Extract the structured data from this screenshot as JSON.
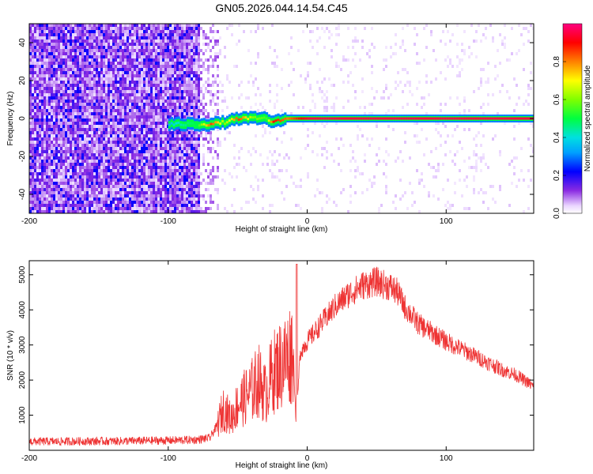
{
  "figure_title": "GN05.2026.044.14.54.C45",
  "chart_data": [
    {
      "type": "heatmap",
      "xlabel": "Height of straight line (km)",
      "ylabel": "Frequency (Hz)",
      "xlim": [
        -200,
        163
      ],
      "ylim": [
        -50,
        50
      ],
      "xticks": [
        -200,
        -100,
        0,
        100
      ],
      "yticks": [
        -40,
        -20,
        0,
        20,
        40
      ],
      "colorbar": {
        "label": "Normalized spectral amplitude",
        "range": [
          0,
          1
        ],
        "ticks": [
          "0.0",
          "0.2",
          "0.4",
          "0.6",
          "0.8"
        ]
      },
      "noise_region_x": [
        -200,
        -70
      ],
      "signal_track": [
        {
          "x": -100,
          "f": -3,
          "amp": 0.35
        },
        {
          "x": -90,
          "f": -3,
          "amp": 0.45
        },
        {
          "x": -80,
          "f": -3,
          "amp": 0.5
        },
        {
          "x": -70,
          "f": -3,
          "amp": 0.85
        },
        {
          "x": -60,
          "f": -2,
          "amp": 0.6
        },
        {
          "x": -50,
          "f": 0,
          "amp": 0.85
        },
        {
          "x": -40,
          "f": 0,
          "amp": 0.6
        },
        {
          "x": -30,
          "f": 0,
          "amp": 0.55
        },
        {
          "x": -25,
          "f": -2,
          "amp": 0.9
        },
        {
          "x": -15,
          "f": 0,
          "amp": 0.8
        },
        {
          "x": 0,
          "f": 0,
          "amp": 0.95
        },
        {
          "x": 50,
          "f": 0,
          "amp": 0.95
        },
        {
          "x": 100,
          "f": 0,
          "amp": 0.95
        },
        {
          "x": 163,
          "f": 0,
          "amp": 0.95
        }
      ]
    },
    {
      "type": "line",
      "xlabel": "Height of straight line (km)",
      "ylabel": "SNR (10 * v/v)",
      "xlim": [
        -200,
        163
      ],
      "ylim": [
        0,
        5400
      ],
      "xticks": [
        -200,
        -100,
        0,
        100
      ],
      "yticks": [
        1000,
        2000,
        3000,
        4000,
        5000
      ],
      "series": [
        {
          "color": "#ee3333",
          "x": [
            -200,
            -180,
            -160,
            -140,
            -120,
            -100,
            -80,
            -70,
            -65,
            -60,
            -55,
            -50,
            -45,
            -40,
            -35,
            -30,
            -25,
            -20,
            -15,
            -10,
            -8,
            -5,
            0,
            10,
            20,
            30,
            40,
            50,
            60,
            65,
            70,
            80,
            90,
            100,
            110,
            120,
            130,
            140,
            150,
            160,
            163
          ],
          "y": [
            250,
            250,
            260,
            260,
            270,
            280,
            300,
            350,
            700,
            1200,
            900,
            1300,
            1500,
            1700,
            2000,
            1600,
            2200,
            2400,
            2600,
            2900,
            700,
            2800,
            3100,
            3600,
            4100,
            4450,
            4700,
            4800,
            4650,
            4500,
            4100,
            3600,
            3350,
            3100,
            2900,
            2700,
            2500,
            2300,
            2150,
            1900,
            1800
          ]
        }
      ]
    }
  ]
}
